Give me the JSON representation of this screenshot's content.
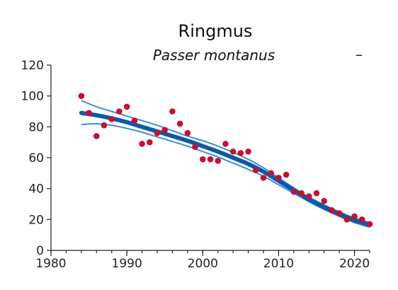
{
  "chart_data": {
    "type": "scatter",
    "title": "Ringmus",
    "subtitle": "Passer montanus",
    "trend_marker": "–",
    "xlabel": "",
    "ylabel": "",
    "xlim": [
      1980,
      2022
    ],
    "ylim": [
      0,
      120
    ],
    "x_ticks": [
      1980,
      1990,
      2000,
      2010,
      2020
    ],
    "y_ticks": [
      0,
      20,
      40,
      60,
      80,
      100,
      120
    ],
    "grid": false,
    "colors": {
      "points": "#c8102e",
      "trend": "#0a5aa8",
      "ci": "#3b8fd6"
    },
    "series": [
      {
        "kind": "points",
        "x": [
          1984,
          1985,
          1986,
          1987,
          1988,
          1989,
          1990,
          1991,
          1992,
          1993,
          1994,
          1995,
          1996,
          1997,
          1998,
          1999,
          2000,
          2001,
          2002,
          2003,
          2004,
          2005,
          2006,
          2007,
          2008,
          2009,
          2010,
          2011,
          2012,
          2013,
          2014,
          2015,
          2016,
          2017,
          2018,
          2019,
          2020,
          2021,
          2022
        ],
        "y": [
          100,
          89,
          74,
          81,
          85,
          90,
          93,
          84,
          69,
          70,
          76,
          78,
          90,
          82,
          76,
          67,
          59,
          59,
          58,
          69,
          64,
          63,
          64,
          52,
          47,
          50,
          47,
          49,
          38,
          37,
          35,
          37,
          32,
          26,
          24,
          20,
          22,
          20,
          17
        ]
      },
      {
        "kind": "trend",
        "x": [
          1984,
          1986,
          1988,
          1990,
          1992,
          1994,
          1996,
          1998,
          2000,
          2002,
          2004,
          2006,
          2008,
          2010,
          2012,
          2014,
          2016,
          2018,
          2020,
          2022
        ],
        "y": [
          89,
          87.5,
          85.5,
          83,
          80,
          77,
          74,
          71,
          67.5,
          64,
          60,
          56,
          51,
          45,
          39,
          33,
          28,
          23.5,
          19.5,
          16.5
        ]
      },
      {
        "kind": "ci_upper",
        "x": [
          1984,
          1986,
          1988,
          1990,
          1992,
          1994,
          1996,
          1998,
          2000,
          2002,
          2004,
          2006,
          2008,
          2010,
          2012,
          2014,
          2016,
          2018,
          2020,
          2022
        ],
        "y": [
          97,
          93,
          90,
          87,
          84,
          81,
          77.5,
          74,
          71,
          67.5,
          63.5,
          59,
          53.5,
          47,
          40.5,
          34.5,
          29.5,
          25,
          21,
          18
        ]
      },
      {
        "kind": "ci_lower",
        "x": [
          1984,
          1986,
          1988,
          1990,
          1992,
          1994,
          1996,
          1998,
          2000,
          2002,
          2004,
          2006,
          2008,
          2010,
          2012,
          2014,
          2016,
          2018,
          2020,
          2022
        ],
        "y": [
          81.5,
          82,
          81,
          79,
          76.5,
          73.5,
          70.5,
          67.5,
          64,
          60.5,
          56.5,
          52.5,
          48,
          42.5,
          37,
          31.5,
          26.5,
          22,
          18,
          15
        ]
      }
    ]
  }
}
